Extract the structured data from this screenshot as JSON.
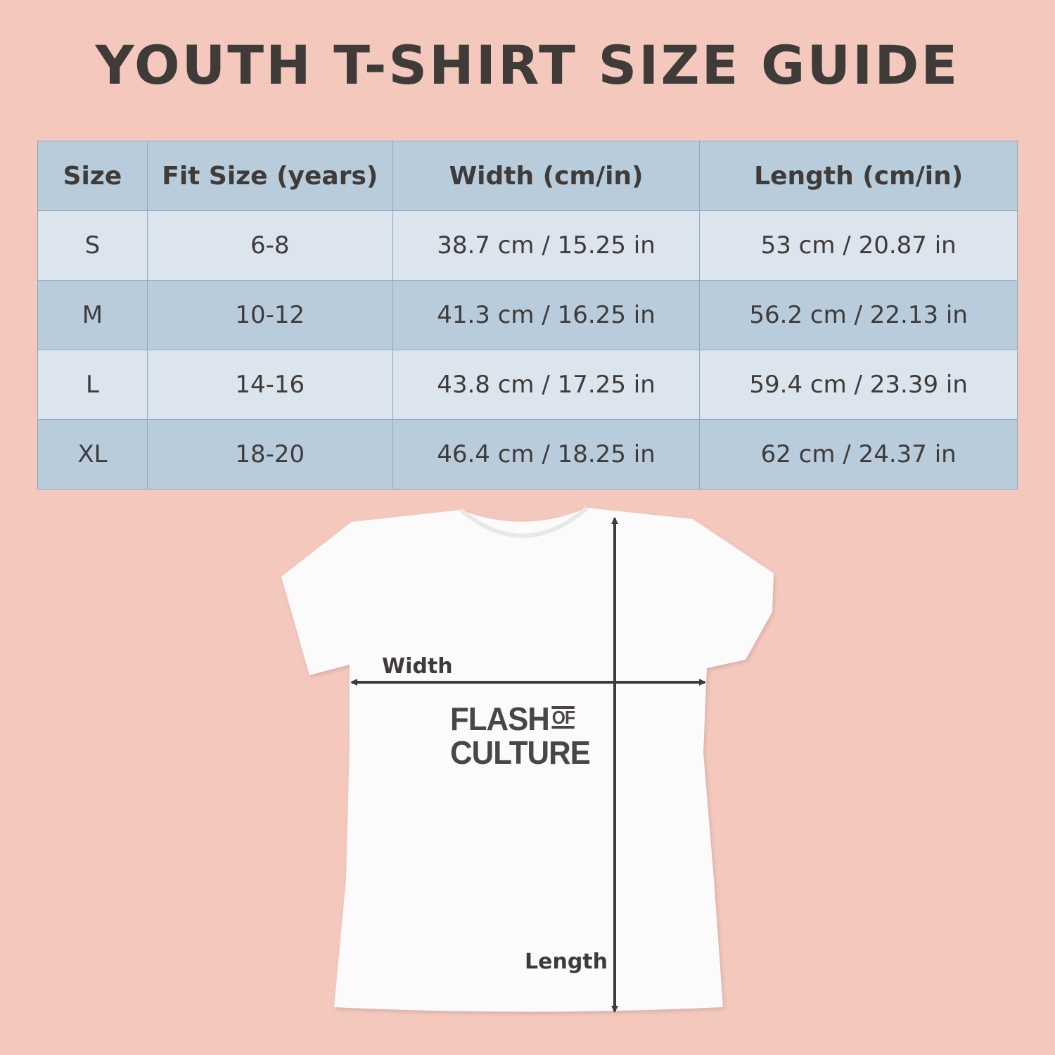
{
  "title": "YOUTH T-SHIRT SIZE GUIDE",
  "table": {
    "headers": [
      "Size",
      "Fit Size (years)",
      "Width (cm/in)",
      "Length (cm/in)"
    ],
    "rows": [
      [
        "S",
        "6-8",
        "38.7 cm / 15.25 in",
        "53 cm / 20.87 in"
      ],
      [
        "M",
        "10-12",
        "41.3 cm / 16.25 in",
        "56.2 cm / 22.13 in"
      ],
      [
        "L",
        "14-16",
        "43.8 cm / 17.25 in",
        "59.4 cm / 23.39 in"
      ],
      [
        "XL",
        "18-20",
        "46.4 cm / 18.25 in",
        "62 cm / 24.37 in"
      ]
    ]
  },
  "diagram": {
    "width_label": "Width",
    "length_label": "Length",
    "logo": {
      "line1": "FLASH",
      "of": "OF",
      "line2": "CULTURE"
    }
  },
  "colors": {
    "background": "#f5c8be",
    "header": "#b9ccdc",
    "row_light": "#dce4ee",
    "text": "#3f3b38"
  }
}
